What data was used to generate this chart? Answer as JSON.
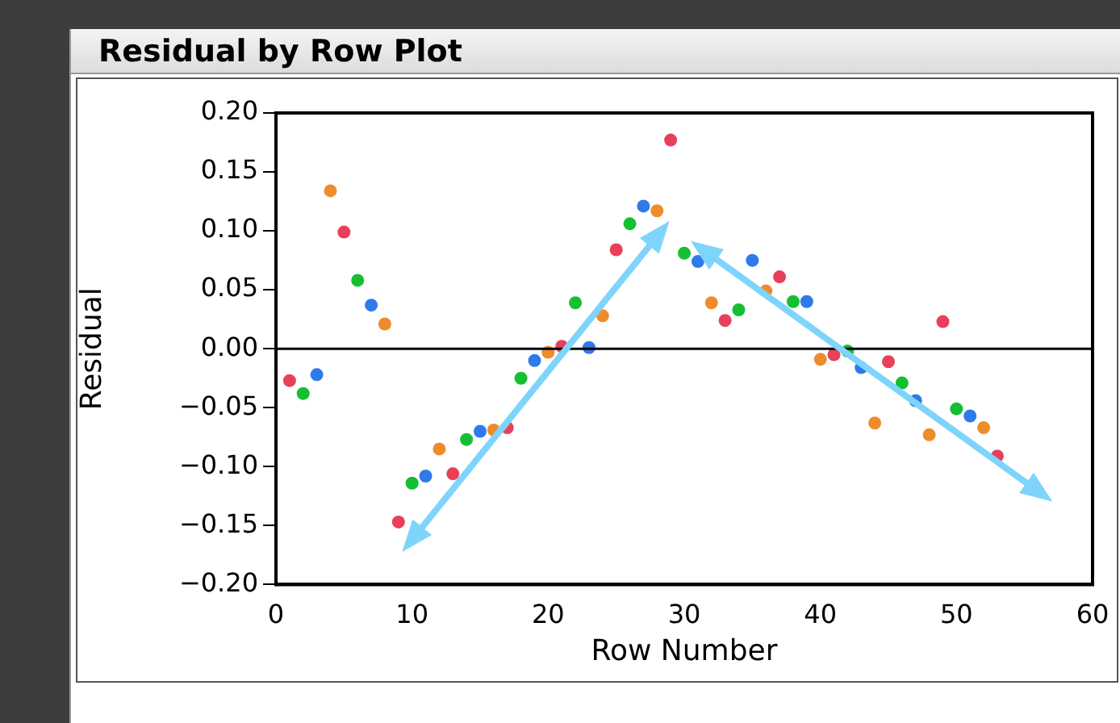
{
  "chart_data": {
    "type": "scatter",
    "title": "Residual by Row Plot",
    "xlabel": "Row Number",
    "ylabel": "Residual",
    "x": [
      1,
      2,
      3,
      4,
      5,
      6,
      7,
      8,
      9,
      10,
      11,
      12,
      13,
      14,
      15,
      16,
      17,
      18,
      19,
      20,
      21,
      22,
      23,
      24,
      25,
      26,
      27,
      28,
      29,
      30,
      31,
      32,
      33,
      34,
      35,
      36,
      37,
      38,
      39,
      40,
      41,
      42,
      43,
      44,
      45,
      46,
      47,
      48,
      49,
      50,
      51,
      52,
      53
    ],
    "values": [
      -0.027,
      -0.038,
      -0.022,
      0.134,
      0.099,
      0.058,
      0.037,
      0.021,
      -0.147,
      -0.114,
      -0.108,
      -0.085,
      -0.106,
      -0.077,
      -0.07,
      -0.069,
      -0.067,
      -0.025,
      -0.01,
      -0.003,
      0.002,
      0.039,
      0.001,
      0.028,
      0.084,
      0.106,
      0.121,
      0.117,
      0.177,
      0.081,
      0.074,
      0.039,
      0.024,
      0.033,
      0.075,
      0.049,
      0.061,
      0.04,
      0.04,
      -0.009,
      -0.005,
      -0.002,
      -0.016,
      -0.063,
      -0.011,
      -0.029,
      -0.044,
      -0.073,
      0.023,
      -0.051,
      -0.057,
      -0.067,
      -0.091
    ],
    "colors": [
      "#e8405a",
      "#14c032",
      "#2f7ae8",
      "#ee8c2c",
      "#e8405a",
      "#14c032",
      "#2f7ae8",
      "#ee8c2c",
      "#e8405a",
      "#14c032",
      "#2f7ae8",
      "#ee8c2c",
      "#e8405a",
      "#14c032",
      "#2f7ae8",
      "#ee8c2c",
      "#e8405a",
      "#14c032",
      "#2f7ae8",
      "#ee8c2c",
      "#e8405a",
      "#14c032",
      "#2f7ae8",
      "#ee8c2c",
      "#e8405a",
      "#14c032",
      "#2f7ae8",
      "#ee8c2c",
      "#e8405a",
      "#14c032",
      "#2f7ae8",
      "#ee8c2c",
      "#e8405a",
      "#14c032",
      "#2f7ae8",
      "#ee8c2c",
      "#e8405a",
      "#14c032",
      "#2f7ae8",
      "#ee8c2c",
      "#e8405a",
      "#14c032",
      "#2f7ae8",
      "#ee8c2c",
      "#e8405a",
      "#14c032",
      "#2f7ae8",
      "#ee8c2c",
      "#e8405a",
      "#14c032",
      "#2f7ae8",
      "#ee8c2c",
      "#e8405a"
    ],
    "xlim": [
      0,
      60
    ],
    "xticks": [
      0,
      10,
      20,
      30,
      40,
      50,
      60
    ],
    "ylim": [
      -0.2,
      0.2
    ],
    "yticks": [
      {
        "value": -0.2,
        "label": "−0.20"
      },
      {
        "value": -0.15,
        "label": "−0.15"
      },
      {
        "value": -0.1,
        "label": "−0.10"
      },
      {
        "value": -0.05,
        "label": "−0.05"
      },
      {
        "value": 0,
        "label": "0.00"
      },
      {
        "value": 0.05,
        "label": "0.05"
      },
      {
        "value": 0.1,
        "label": "0.10"
      },
      {
        "value": 0.15,
        "label": "0.15"
      },
      {
        "value": 0.2,
        "label": "0.20"
      }
    ],
    "ref_lines": [
      {
        "axis": "y",
        "value": 0,
        "color": "#000000"
      }
    ],
    "grid": false,
    "legend": false,
    "marker": "circle"
  }
}
